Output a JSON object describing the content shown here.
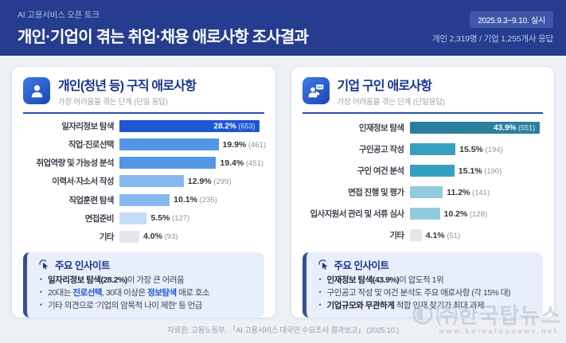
{
  "header": {
    "eyebrow": "AI 고용서비스 오픈 토크",
    "title": "개인·기업이 겪는 취업·채용 애로사항 조사결과",
    "badge": "2025.9.3~9.10. 실시",
    "stats": "개인 2,319명 / 기업 1,255개사 응답"
  },
  "chart_data": [
    {
      "type": "bar",
      "orientation": "horizontal",
      "title": "개인(청년 등) 구직 애로사항",
      "subtitle": "가장 어려움을 겪는 단계 (단일 응답)",
      "categories": [
        "일자리정보 탐색",
        "직업·진로선택",
        "취업역량 및 가능성 분석",
        "이력서·자소서 작성",
        "직업훈련 탐색",
        "면접준비",
        "기타"
      ],
      "values": [
        28.2,
        19.9,
        19.4,
        12.9,
        10.1,
        5.5,
        4.0
      ],
      "counts": [
        653,
        461,
        451,
        299,
        235,
        127,
        93
      ],
      "unit": "%",
      "xlim": [
        0,
        29
      ],
      "grid": false,
      "legend": "none",
      "bar_colors": [
        "#1d57d2",
        "#5496e4",
        "#5496e4",
        "#85b9ee",
        "#85b9ee",
        "#c3dcf7",
        "#e3e6ea"
      ],
      "value_label_inside_index": 0
    },
    {
      "type": "bar",
      "orientation": "horizontal",
      "title": "기업 구인 애로사항",
      "subtitle": "가장 어려움을 겪는 단계 (단일응답)",
      "categories": [
        "인재정보 탐색",
        "구인공고 작성",
        "구인 여건 분석",
        "면접 진행 및 평가",
        "입사지원서 관리 및 서류 심사",
        "기타"
      ],
      "values": [
        43.9,
        15.5,
        15.1,
        11.2,
        10.2,
        4.1
      ],
      "counts": [
        551,
        194,
        190,
        141,
        128,
        51
      ],
      "unit": "%",
      "xlim": [
        0,
        45
      ],
      "grid": false,
      "legend": "none",
      "bar_colors": [
        "#2c7f9c",
        "#38a0bf",
        "#38a0bf",
        "#92cbdd",
        "#92cbdd",
        "#e3e6ea"
      ],
      "value_label_inside_index": 0
    }
  ],
  "panels": [
    {
      "icon": "person-icon",
      "insight_title": "주요 인사이트",
      "insights": [
        [
          {
            "t": "일자리정보 탐색(28.2%)",
            "b": true
          },
          {
            "t": "이 가장 큰 어려움"
          }
        ],
        [
          {
            "t": "20대는 "
          },
          {
            "t": "진로선택",
            "b": true,
            "hl": true
          },
          {
            "t": ", 30대 이상은 "
          },
          {
            "t": "정보탐색",
            "b": true,
            "hl": true
          },
          {
            "t": " 애로 호소"
          }
        ],
        [
          {
            "t": "기타 의견으로 '기업의 암묵적 나이 제한' 등 언급"
          }
        ]
      ]
    },
    {
      "icon": "recruiter-chat-icon",
      "insight_title": "주요 인사이트",
      "insights": [
        [
          {
            "t": "인재정보 탐색(43.9%)",
            "b": true
          },
          {
            "t": "이 압도적 1위"
          }
        ],
        [
          {
            "t": "구인공고 작성 및 여건 분석도 주요 애로사항 (각 15% 대)"
          }
        ],
        [
          {
            "t": "기업규모와 무관하게",
            "b": true
          },
          {
            "t": " 적합 인재 찾기가 최대 과제"
          }
        ]
      ]
    }
  ],
  "insight_icon": "click-insight-icon",
  "footer": {
    "source": "자료원: 고용노동부, 「AI 고용서비스 대국민 수요조사 결과보고」 (2025.10.)"
  },
  "watermark": {
    "company": "㈜한국탑뉴스",
    "url": "www.koreatopnews.net"
  },
  "colors": {
    "header_bg": "#263d8f",
    "badge_bg": "#3e57a6",
    "accent_navy": "#16348c",
    "underline_blue": "#2b50b4",
    "insight_bg": "#e9effa",
    "insight_border": "#33518f",
    "page_bg": "#edf0f5",
    "bar_blue_dark": "#1d57d2",
    "bar_teal_dark": "#2c7f9c"
  }
}
